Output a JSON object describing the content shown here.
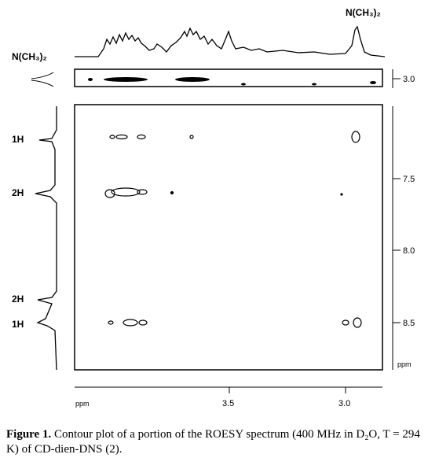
{
  "figure": {
    "top_label": "N(CH₃)₂",
    "left_label": "N(CH₃)₂",
    "left_peaks": [
      "1H",
      "2H",
      "2H",
      "1H"
    ],
    "x_axis": {
      "unit": "ppm",
      "ticks": [
        "3.5",
        "3.0"
      ]
    },
    "y_axis": {
      "strip_tick": "3.0",
      "ticks": [
        "7.5",
        "8.0",
        "8.5"
      ],
      "unit": "ppm"
    }
  },
  "caption": {
    "label": "Figure 1.",
    "text": "Contour plot of a portion of the ROESY spectrum (400 MHz in D₂O, T = 294 K) of CD-dien-DNS (2)."
  }
}
